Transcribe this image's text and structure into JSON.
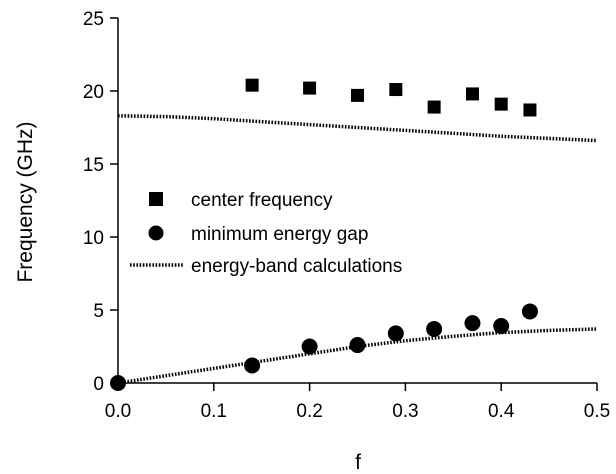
{
  "chart_data": {
    "type": "scatter",
    "title": "",
    "xlabel": "f",
    "ylabel": "Frequency (GHz)",
    "xlim": [
      0.0,
      0.5
    ],
    "ylim": [
      0,
      25
    ],
    "x_ticks": [
      "0.0",
      "0.1",
      "0.2",
      "0.3",
      "0.4",
      "0.5"
    ],
    "y_ticks": [
      "0",
      "5",
      "10",
      "15",
      "20",
      "25"
    ],
    "grid": false,
    "legend_position": "center-left",
    "series": [
      {
        "name": "center frequency",
        "marker": "square",
        "color": "#000000",
        "x": [
          0.14,
          0.2,
          0.25,
          0.29,
          0.33,
          0.37,
          0.4,
          0.43
        ],
        "y": [
          20.4,
          20.2,
          19.7,
          20.1,
          18.9,
          19.8,
          19.1,
          18.7
        ]
      },
      {
        "name": "minimum energy gap",
        "marker": "circle",
        "color": "#000000",
        "x": [
          0.0,
          0.14,
          0.2,
          0.25,
          0.29,
          0.33,
          0.37,
          0.4,
          0.43
        ],
        "y": [
          0.0,
          1.2,
          2.5,
          2.6,
          3.4,
          3.7,
          4.1,
          3.9,
          4.9
        ]
      },
      {
        "name": "energy-band calculations",
        "marker": "dotted-line",
        "color": "#000000",
        "curves": [
          {
            "x": [
              0.0,
              0.05,
              0.1,
              0.15,
              0.2,
              0.25,
              0.3,
              0.35,
              0.4,
              0.45,
              0.5
            ],
            "y": [
              18.3,
              18.25,
              18.1,
              17.9,
              17.7,
              17.5,
              17.3,
              17.1,
              16.9,
              16.75,
              16.6
            ]
          },
          {
            "x": [
              0.0,
              0.05,
              0.1,
              0.15,
              0.2,
              0.25,
              0.3,
              0.35,
              0.4,
              0.45,
              0.5
            ],
            "y": [
              0.0,
              0.5,
              1.0,
              1.5,
              2.0,
              2.5,
              2.9,
              3.2,
              3.45,
              3.6,
              3.7
            ]
          }
        ]
      }
    ]
  }
}
